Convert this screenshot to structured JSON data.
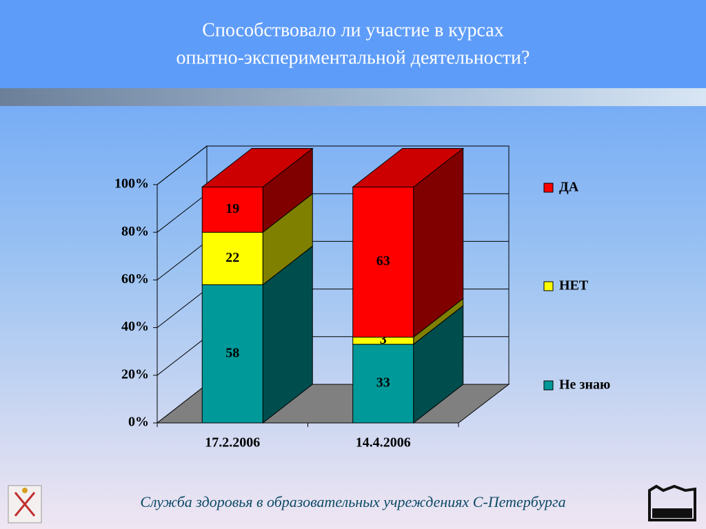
{
  "title_lines": [
    "Способствовало ли участие в курсах",
    "опытно-экспериментальной деятельности?"
  ],
  "footer": "Служба здоровья в образовательных учреждениях С-Петербурга",
  "chart_data": {
    "type": "stacked_bar_3d",
    "categories": [
      "17.2.2006",
      "14.4.2006"
    ],
    "series": [
      {
        "name": "Не знаю",
        "color": "#009999",
        "values": [
          58,
          33
        ]
      },
      {
        "name": "НЕТ",
        "color": "#ffff00",
        "values": [
          22,
          3
        ]
      },
      {
        "name": "ДА",
        "color": "#ff0000",
        "values": [
          19,
          63
        ]
      }
    ],
    "ylim": [
      0,
      100
    ],
    "yticks": [
      {
        "value": 0,
        "label": "0%"
      },
      {
        "value": 20,
        "label": "20%"
      },
      {
        "value": 40,
        "label": "40%"
      },
      {
        "value": 60,
        "label": "60%"
      },
      {
        "value": 80,
        "label": "80%"
      },
      {
        "value": 100,
        "label": "100%"
      }
    ],
    "grid": true,
    "legend": "right"
  }
}
